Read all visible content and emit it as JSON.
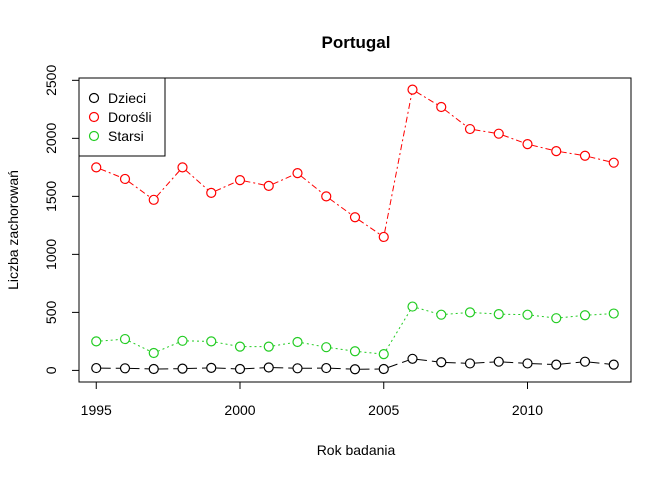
{
  "chart_data": {
    "type": "line",
    "title": "Portugal",
    "xlabel": "Rok badania",
    "ylabel": "Liczba zachorowań",
    "xlim": [
      1994.4,
      2013.6
    ],
    "ylim": [
      -100,
      2520
    ],
    "xticks": [
      1995,
      2000,
      2005,
      2010
    ],
    "yticks": [
      0,
      500,
      1000,
      1500,
      2000,
      2500
    ],
    "x": [
      1995,
      1996,
      1997,
      1998,
      1999,
      2000,
      2001,
      2002,
      2003,
      2004,
      2005,
      2006,
      2007,
      2008,
      2009,
      2010,
      2011,
      2012,
      2013
    ],
    "grid": false,
    "legend_position": "top-left",
    "series": [
      {
        "name": "Dzieci",
        "color": "#000000",
        "dash": "10,5",
        "values": [
          20,
          18,
          12,
          15,
          22,
          12,
          25,
          18,
          20,
          10,
          12,
          100,
          70,
          60,
          75,
          60,
          50,
          75,
          50
        ]
      },
      {
        "name": "Dorośli",
        "color": "#ff0000",
        "dash": "6,3,2,3",
        "values": [
          1750,
          1650,
          1470,
          1750,
          1530,
          1640,
          1590,
          1700,
          1500,
          1320,
          1150,
          2420,
          2270,
          2080,
          2040,
          1950,
          1890,
          1850,
          1790
        ]
      },
      {
        "name": "Starsi",
        "color": "#22cc22",
        "dash": "2,3",
        "values": [
          250,
          270,
          150,
          255,
          250,
          205,
          205,
          245,
          200,
          165,
          140,
          550,
          480,
          500,
          485,
          480,
          450,
          475,
          490
        ]
      }
    ]
  }
}
